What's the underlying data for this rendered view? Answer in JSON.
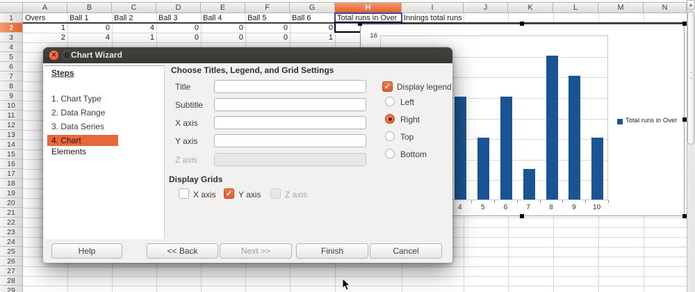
{
  "spreadsheet": {
    "columns": [
      "A",
      "B",
      "C",
      "D",
      "E",
      "F",
      "G",
      "H",
      "I",
      "J",
      "K",
      "L",
      "M",
      "N"
    ],
    "selected_column": "H",
    "selected_row": "2",
    "rows_visible": 29,
    "cells": [
      {
        "col": "A",
        "row": 1,
        "text": "Overs",
        "align": "left"
      },
      {
        "col": "B",
        "row": 1,
        "text": "Ball 1",
        "align": "left"
      },
      {
        "col": "C",
        "row": 1,
        "text": "Ball 2",
        "align": "left"
      },
      {
        "col": "D",
        "row": 1,
        "text": "Ball 3",
        "align": "left"
      },
      {
        "col": "E",
        "row": 1,
        "text": "Ball 4",
        "align": "left"
      },
      {
        "col": "F",
        "row": 1,
        "text": "Ball 5",
        "align": "left"
      },
      {
        "col": "G",
        "row": 1,
        "text": "Ball 6",
        "align": "left"
      },
      {
        "col": "H",
        "row": 1,
        "text": "Total runs in Over",
        "align": "left"
      },
      {
        "col": "I",
        "row": 1,
        "text": "Innings total runs",
        "align": "left"
      },
      {
        "col": "A",
        "row": 2,
        "text": "1",
        "align": "right"
      },
      {
        "col": "B",
        "row": 2,
        "text": "0",
        "align": "right"
      },
      {
        "col": "C",
        "row": 2,
        "text": "4",
        "align": "right"
      },
      {
        "col": "D",
        "row": 2,
        "text": "0",
        "align": "right"
      },
      {
        "col": "E",
        "row": 2,
        "text": "0",
        "align": "right"
      },
      {
        "col": "F",
        "row": 2,
        "text": "0",
        "align": "right"
      },
      {
        "col": "G",
        "row": 2,
        "text": "0",
        "align": "right"
      },
      {
        "col": "A",
        "row": 3,
        "text": "2",
        "align": "right"
      },
      {
        "col": "B",
        "row": 3,
        "text": "4",
        "align": "right"
      },
      {
        "col": "C",
        "row": 3,
        "text": "1",
        "align": "right"
      },
      {
        "col": "D",
        "row": 3,
        "text": "0",
        "align": "right"
      },
      {
        "col": "E",
        "row": 3,
        "text": "0",
        "align": "right"
      },
      {
        "col": "F",
        "row": 3,
        "text": "0",
        "align": "right"
      },
      {
        "col": "G",
        "row": 3,
        "text": "1",
        "align": "right"
      }
    ]
  },
  "chart_data": {
    "type": "bar",
    "title": "",
    "categories": [
      "4",
      "5",
      "6",
      "7",
      "8",
      "9",
      "10"
    ],
    "values": [
      10,
      6,
      10,
      3,
      14,
      12,
      6
    ],
    "x_slots_total": 10,
    "ylim": [
      0,
      16
    ],
    "visible_y_tick": "16",
    "y_grid_step": 2,
    "grid": "horizontal",
    "legend_entries": [
      "Total runs in Over"
    ],
    "legend_position": "right",
    "bar_color": "#1a5494"
  },
  "dialog": {
    "title": "Chart Wizard",
    "steps_heading": "Steps",
    "steps": [
      {
        "label": "1. Chart Type",
        "active": false
      },
      {
        "label": "2. Data Range",
        "active": false
      },
      {
        "label": "3. Data Series",
        "active": false
      },
      {
        "label": "4. Chart Elements",
        "active": true
      }
    ],
    "content_heading": "Choose Titles, Legend, and Grid Settings",
    "fields": [
      {
        "label": "Title",
        "value": "",
        "disabled": false
      },
      {
        "label": "Subtitle",
        "value": "",
        "disabled": false
      },
      {
        "label": "X axis",
        "value": "",
        "disabled": false
      },
      {
        "label": "Y axis",
        "value": "",
        "disabled": false
      },
      {
        "label": "Z axis",
        "value": "",
        "disabled": true
      }
    ],
    "legend_checkbox_label": "Display legend",
    "legend_checked": true,
    "legend_positions": [
      {
        "label": "Left",
        "selected": false
      },
      {
        "label": "Right",
        "selected": true
      },
      {
        "label": "Top",
        "selected": false
      },
      {
        "label": "Bottom",
        "selected": false
      }
    ],
    "grids_heading": "Display Grids",
    "grid_options": [
      {
        "label": "X axis",
        "checked": false,
        "disabled": false
      },
      {
        "label": "Y axis",
        "checked": true,
        "disabled": false
      },
      {
        "label": "Z axis",
        "checked": false,
        "disabled": true
      }
    ],
    "buttons": [
      {
        "label": "Help",
        "disabled": false
      },
      {
        "label": "<< Back",
        "disabled": false
      },
      {
        "label": "Next >>",
        "disabled": true
      },
      {
        "label": "Finish",
        "disabled": false
      },
      {
        "label": "Cancel",
        "disabled": false
      }
    ]
  },
  "colors": {
    "accent_orange": "#e8683e",
    "selected_header": "#e65f2b",
    "bar_blue": "#1a5494"
  }
}
